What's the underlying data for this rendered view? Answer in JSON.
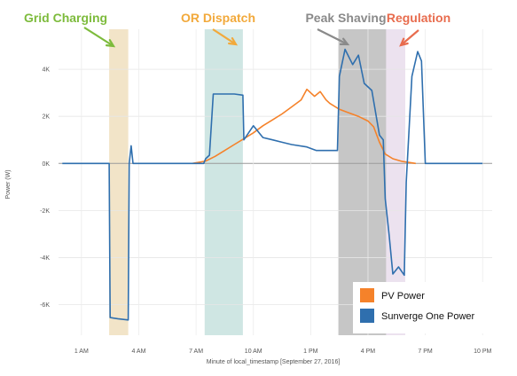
{
  "chart_data": {
    "type": "line",
    "xlabel": "Minute of local_timestamp [September 27, 2016]",
    "ylabel": "Power (W)",
    "x_range_hours": [
      -0.2,
      22.5
    ],
    "ylim": [
      -7300,
      5700
    ],
    "grid": true,
    "x_ticks": [
      {
        "hour": 1,
        "label": "1 AM"
      },
      {
        "hour": 4,
        "label": "4 AM"
      },
      {
        "hour": 7,
        "label": "7 AM"
      },
      {
        "hour": 10,
        "label": "10 AM"
      },
      {
        "hour": 13,
        "label": "1 PM"
      },
      {
        "hour": 16,
        "label": "4 PM"
      },
      {
        "hour": 19,
        "label": "7 PM"
      },
      {
        "hour": 22,
        "label": "10 PM"
      }
    ],
    "y_ticks": [
      {
        "value": 4000,
        "label": "4K"
      },
      {
        "value": 2000,
        "label": "2K"
      },
      {
        "value": 0,
        "label": "0K"
      },
      {
        "value": -2000,
        "label": "-2K"
      },
      {
        "value": -4000,
        "label": "-4K"
      },
      {
        "value": -6000,
        "label": "-6K"
      }
    ],
    "legend": {
      "position": "bottom-right",
      "entries": [
        {
          "label": "PV Power",
          "color": "#f5822a"
        },
        {
          "label": "Sunverge One Power",
          "color": "#2f6fae"
        }
      ]
    },
    "regions": [
      {
        "label": "Grid Charging",
        "x_start_h": 2.45,
        "x_end_h": 3.45,
        "fill": "#f2e4c8",
        "label_color": "#7dbb3c"
      },
      {
        "label": "OR Dispatch",
        "x_start_h": 7.45,
        "x_end_h": 9.45,
        "fill": "#cfe6e3",
        "label_color": "#f2a93b"
      },
      {
        "label": "Peak Shaving",
        "x_start_h": 14.45,
        "x_end_h": 16.95,
        "fill": "#c6c6c6",
        "label_color": "#8a8a8a"
      },
      {
        "label": "Regulation",
        "x_start_h": 16.95,
        "x_end_h": 17.95,
        "fill": "#ece2ef",
        "label_color": "#e86c4e"
      }
    ],
    "series": [
      {
        "name": "PV Power",
        "color": "#f5822a",
        "points": [
          [
            6.8,
            0
          ],
          [
            7.5,
            100
          ],
          [
            8,
            300
          ],
          [
            8.5,
            550
          ],
          [
            9,
            800
          ],
          [
            9.5,
            1050
          ],
          [
            10,
            1300
          ],
          [
            10.5,
            1600
          ],
          [
            11,
            1850
          ],
          [
            11.5,
            2100
          ],
          [
            12,
            2400
          ],
          [
            12.5,
            2700
          ],
          [
            12.8,
            3150
          ],
          [
            13.2,
            2850
          ],
          [
            13.5,
            3050
          ],
          [
            13.8,
            2700
          ],
          [
            14,
            2550
          ],
          [
            14.5,
            2300
          ],
          [
            15,
            2150
          ],
          [
            15.5,
            2000
          ],
          [
            16,
            1800
          ],
          [
            16.3,
            1550
          ],
          [
            16.6,
            900
          ],
          [
            16.9,
            400
          ],
          [
            17.3,
            200
          ],
          [
            17.8,
            80
          ],
          [
            18.5,
            0
          ]
        ]
      },
      {
        "name": "Sunverge One Power",
        "color": "#2f6fae",
        "points": [
          [
            0,
            0
          ],
          [
            2.45,
            0
          ],
          [
            2.5,
            -6550
          ],
          [
            2.9,
            -6600
          ],
          [
            3.45,
            -6650
          ],
          [
            3.5,
            0
          ],
          [
            3.6,
            750
          ],
          [
            3.7,
            0
          ],
          [
            5,
            0
          ],
          [
            7.4,
            0
          ],
          [
            7.5,
            200
          ],
          [
            7.7,
            350
          ],
          [
            7.9,
            2950
          ],
          [
            9,
            2950
          ],
          [
            9.45,
            2900
          ],
          [
            9.5,
            1000
          ],
          [
            10,
            1600
          ],
          [
            10.5,
            1100
          ],
          [
            11,
            1000
          ],
          [
            11.5,
            900
          ],
          [
            12,
            800
          ],
          [
            12.8,
            700
          ],
          [
            13.3,
            550
          ],
          [
            14.4,
            550
          ],
          [
            14.5,
            3700
          ],
          [
            14.8,
            4850
          ],
          [
            15.2,
            4200
          ],
          [
            15.5,
            4600
          ],
          [
            15.8,
            3400
          ],
          [
            16.2,
            3100
          ],
          [
            16.6,
            1200
          ],
          [
            16.8,
            1000
          ],
          [
            16.9,
            -1500
          ],
          [
            17.1,
            -3000
          ],
          [
            17.3,
            -4700
          ],
          [
            17.6,
            -4400
          ],
          [
            17.9,
            -4750
          ],
          [
            18.0,
            -800
          ],
          [
            18.3,
            3700
          ],
          [
            18.6,
            4750
          ],
          [
            18.8,
            4350
          ],
          [
            19.0,
            0
          ],
          [
            20,
            0
          ],
          [
            22,
            0
          ]
        ]
      }
    ]
  }
}
